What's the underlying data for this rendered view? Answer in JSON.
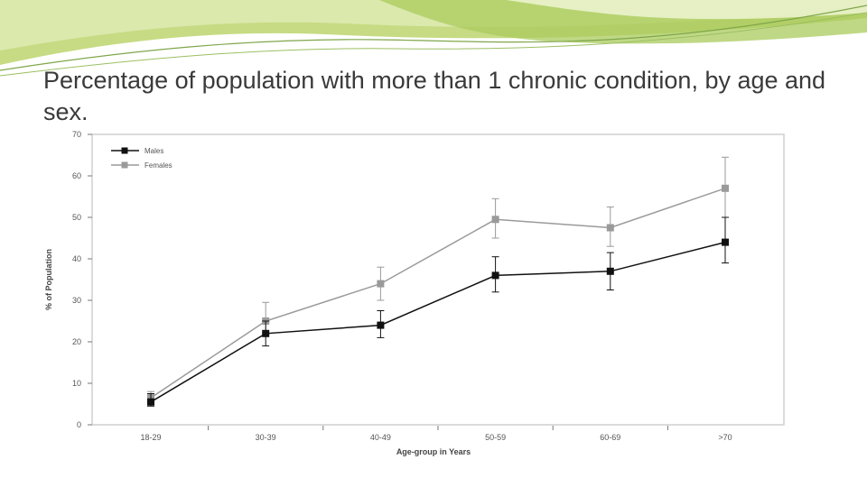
{
  "slide": {
    "title": "Percentage of population with more than 1 chronic condition, by age and sex."
  },
  "colors": {
    "banner_green": "#c6db83",
    "males": "#111111",
    "females": "#9a9a9a",
    "axis": "#777777"
  },
  "chart_data": {
    "type": "line",
    "categories": [
      "18-29",
      "30-39",
      "40-49",
      "50-59",
      "60-69",
      ">70"
    ],
    "series": [
      {
        "name": "Males",
        "values": [
          5.5,
          22,
          24,
          36,
          37,
          44
        ],
        "error_low": [
          4.5,
          19,
          21,
          32,
          32.5,
          39
        ],
        "error_high": [
          7.5,
          25,
          27.5,
          40.5,
          41.5,
          50
        ]
      },
      {
        "name": "Females",
        "values": [
          6.5,
          25,
          34,
          49.5,
          47.5,
          57
        ],
        "error_low": [
          5,
          22,
          30,
          45,
          43,
          50
        ],
        "error_high": [
          8,
          29.5,
          38,
          54.5,
          52.5,
          64.5
        ]
      }
    ],
    "xlabel": "Age-group in Years",
    "ylabel": "% of Population",
    "ylim": [
      0,
      70
    ],
    "yticks": [
      "0",
      "10",
      "20",
      "30",
      "40",
      "50",
      "60",
      "70"
    ],
    "legend_position": "top-left",
    "grid": false,
    "error_bars": true
  }
}
